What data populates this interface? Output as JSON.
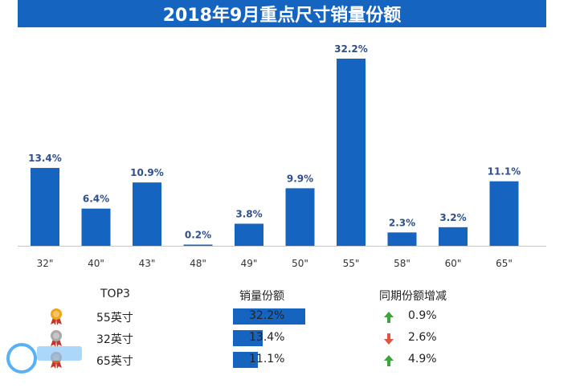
{
  "title": "2018年9月重点尺寸销量份额",
  "chart_data": {
    "type": "bar",
    "title": "2018年9月重点尺寸销量份额",
    "categories": [
      "32\"",
      "40\"",
      "43\"",
      "48\"",
      "49\"",
      "50\"",
      "55\"",
      "58\"",
      "60\"",
      "65\""
    ],
    "values": [
      13.4,
      6.4,
      10.9,
      0.2,
      3.8,
      9.9,
      32.2,
      2.3,
      3.2,
      11.1
    ],
    "value_labels": [
      "13.4%",
      "6.4%",
      "10.9%",
      "0.2%",
      "3.8%",
      "9.9%",
      "32.2%",
      "2.3%",
      "3.2%",
      "11.1%"
    ],
    "ylim": [
      0,
      32.2
    ],
    "grid": false,
    "bar_color": "#1565c0"
  },
  "table": {
    "headers": [
      "TOP3",
      "销量份额",
      "同期份额增减"
    ],
    "rows": [
      {
        "size": "55英寸",
        "share": 32.2,
        "share_label": "32.2%",
        "direction": "up",
        "yoy": "0.9%",
        "medal": "gold-medal-icon"
      },
      {
        "size": "32英寸",
        "share": 13.4,
        "share_label": "13.4%",
        "direction": "down",
        "yoy": "2.6%",
        "medal": "silver-medal-icon"
      },
      {
        "size": "65英寸",
        "share": 11.1,
        "share_label": "11.1%",
        "direction": "up",
        "yoy": "4.9%",
        "medal": "bronze-medal-icon"
      }
    ]
  },
  "colors": {
    "accent": "#1565c0",
    "up_arrow": "#3aa63a",
    "down_arrow": "#e0533f"
  }
}
